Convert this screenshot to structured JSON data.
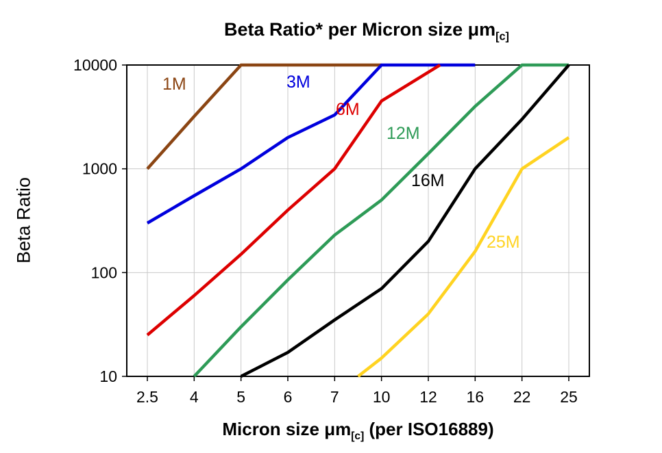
{
  "page": {
    "background": "#ffffff"
  },
  "chart_data": {
    "type": "line",
    "title_main": "Beta Ratio* per Micron size μm",
    "title_sub": "[c]",
    "ylabel": "Beta Ratio",
    "xlabel_main": "Micron size μm",
    "xlabel_sub": "[c]",
    "xlabel_tail": " (per ISO16889)",
    "x_ticks": [
      2.5,
      4,
      5,
      6,
      7,
      10,
      12,
      16,
      22,
      25
    ],
    "y_ticks": [
      10,
      100,
      1000,
      10000
    ],
    "y_scale": "log",
    "ylim": [
      10,
      10000
    ],
    "grid": {
      "vertical": true,
      "horizontal": true,
      "color": "#c9c9c9"
    },
    "axis_color": "#000000",
    "series": [
      {
        "name": "1M",
        "color": "#8B4513",
        "label_pos": [
          237,
          131
        ],
        "points": [
          [
            2.5,
            1000
          ],
          [
            4,
            3200
          ],
          [
            5,
            10000
          ],
          [
            10,
            10000
          ]
        ]
      },
      {
        "name": "3M",
        "color": "#0000DD",
        "label_pos": [
          418,
          128
        ],
        "points": [
          [
            2.5,
            300
          ],
          [
            4,
            550
          ],
          [
            5,
            1000
          ],
          [
            6,
            2000
          ],
          [
            7,
            3300
          ],
          [
            10,
            10000
          ],
          [
            16,
            10000
          ]
        ]
      },
      {
        "name": "6M",
        "color": "#DD0000",
        "label_pos": [
          490,
          168
        ],
        "points": [
          [
            2.5,
            25
          ],
          [
            4,
            60
          ],
          [
            5,
            150
          ],
          [
            6,
            400
          ],
          [
            7,
            1000
          ],
          [
            10,
            4500
          ],
          [
            13,
            10000
          ]
        ]
      },
      {
        "name": "12M",
        "color": "#2E9B57",
        "label_pos": [
          564,
          203
        ],
        "points": [
          [
            4,
            10
          ],
          [
            5,
            30
          ],
          [
            6,
            85
          ],
          [
            7,
            230
          ],
          [
            10,
            500
          ],
          [
            12,
            1400
          ],
          [
            16,
            4000
          ],
          [
            22,
            10000
          ],
          [
            25,
            10000
          ]
        ]
      },
      {
        "name": "16M",
        "color": "#000000",
        "label_pos": [
          600,
          272
        ],
        "points": [
          [
            5,
            10
          ],
          [
            6,
            17
          ],
          [
            7,
            35
          ],
          [
            10,
            70
          ],
          [
            12,
            200
          ],
          [
            16,
            1000
          ],
          [
            22,
            3000
          ],
          [
            25,
            10000
          ]
        ]
      },
      {
        "name": "25M",
        "color": "#FFD321",
        "label_pos": [
          710,
          362
        ],
        "points": [
          [
            8.5,
            10
          ],
          [
            10,
            15
          ],
          [
            12,
            40
          ],
          [
            16,
            160
          ],
          [
            22,
            1000
          ],
          [
            25,
            2000
          ]
        ]
      }
    ]
  }
}
